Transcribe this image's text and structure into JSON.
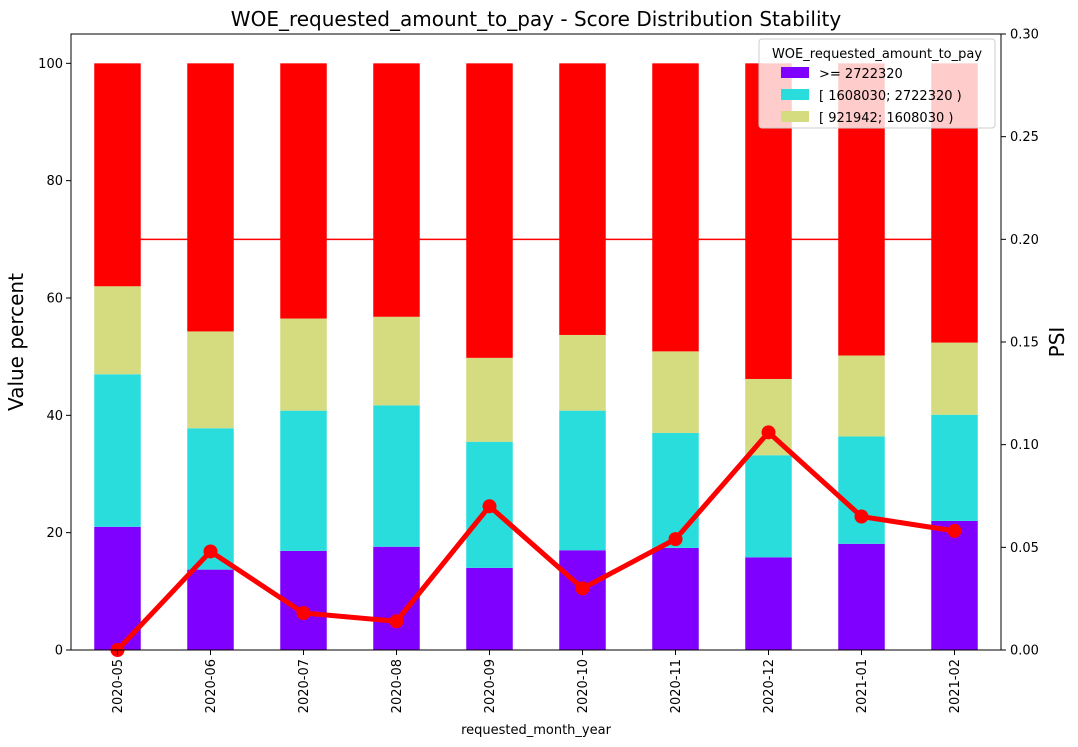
{
  "chart_data": {
    "type": "bar",
    "stacked": true,
    "title": "WOE_requested_amount_to_pay  - Score Distribution Stability",
    "xlabel": "requested_month_year",
    "ylabel": "Value percent",
    "ylabel_right": "PSI",
    "categories": [
      "2020-05",
      "2020-06",
      "2020-07",
      "2020-08",
      "2020-09",
      "2020-10",
      "2020-11",
      "2020-12",
      "2021-01",
      "2021-02"
    ],
    "ylim": [
      0,
      105
    ],
    "ylim_right": [
      0,
      0.3
    ],
    "yticks": [
      "0",
      "20",
      "40",
      "60",
      "80",
      "100"
    ],
    "yticks_right": [
      "0.00",
      "0.05",
      "0.10",
      "0.15",
      "0.20",
      "0.25",
      "0.30"
    ],
    "series": [
      {
        "name": ">= 2722320",
        "color": "#8000ff",
        "values": [
          21.0,
          13.7,
          16.9,
          17.6,
          14.0,
          17.0,
          17.4,
          15.8,
          18.1,
          22.0
        ]
      },
      {
        "name": "[ 1608030; 2722320 )",
        "color": "#2adddd",
        "values": [
          26.0,
          24.1,
          23.9,
          24.1,
          21.5,
          23.8,
          19.6,
          17.4,
          18.3,
          18.1
        ]
      },
      {
        "name": "[ 921942; 1608030 )",
        "color": "#d4dc7f",
        "values": [
          15.0,
          16.5,
          15.7,
          15.1,
          14.3,
          12.9,
          13.9,
          13.0,
          13.8,
          12.3
        ]
      },
      {
        "values": [
          38.0,
          45.7,
          43.5,
          43.2,
          50.2,
          46.3,
          49.1,
          53.8,
          49.8,
          47.6
        ],
        "color": "#ff0000"
      }
    ],
    "reference_line": {
      "value": 0.2,
      "axis": "right",
      "color": "#ff0000"
    },
    "psi_line": {
      "axis": "right",
      "color": "#ff0000",
      "values": [
        0.0,
        0.048,
        0.018,
        0.014,
        0.07,
        0.03,
        0.054,
        0.106,
        0.065,
        0.058
      ]
    },
    "legend": {
      "title": "WOE_requested_amount_to_pay",
      "placement": "top-right"
    },
    "grid": false
  }
}
